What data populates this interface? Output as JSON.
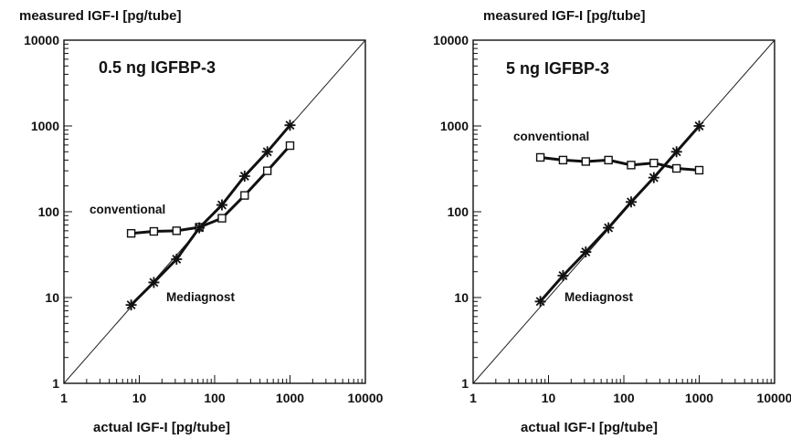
{
  "chart_data": [
    {
      "type": "line",
      "title": "0.5 ng IGFBP-3",
      "ylabel": "measured IGF-I [pg/tube]",
      "xlabel": "actual IGF-I [pg/tube]",
      "xscale": "log",
      "yscale": "log",
      "xlim": [
        1,
        10000
      ],
      "ylim": [
        1,
        10000
      ],
      "xticks": [
        "1",
        "10",
        "100",
        "1000",
        "10000"
      ],
      "yticks": [
        "1",
        "10",
        "100",
        "1000",
        "10000"
      ],
      "identity_line": true,
      "grid": false,
      "series": [
        {
          "name": "conventional",
          "marker": "square",
          "x": [
            7.8,
            15.6,
            31.25,
            62.5,
            125,
            250,
            500,
            1000
          ],
          "y": [
            56,
            59,
            60,
            66,
            84,
            155,
            300,
            590
          ]
        },
        {
          "name": "Mediagnost",
          "marker": "asterisk",
          "x": [
            7.8,
            15.6,
            31.25,
            62.5,
            125,
            250,
            500,
            1000
          ],
          "y": [
            8.2,
            15,
            28,
            65,
            120,
            260,
            500,
            1020
          ]
        }
      ]
    },
    {
      "type": "line",
      "title": "5 ng IGFBP-3",
      "ylabel": "measured IGF-I [pg/tube]",
      "xlabel": "actual IGF-I [pg/tube]",
      "xscale": "log",
      "yscale": "log",
      "xlim": [
        1,
        10000
      ],
      "ylim": [
        1,
        10000
      ],
      "xticks": [
        "1",
        "10",
        "100",
        "1000",
        "10000"
      ],
      "yticks": [
        "1",
        "10",
        "100",
        "1000",
        "10000"
      ],
      "identity_line": true,
      "grid": false,
      "series": [
        {
          "name": "conventional",
          "marker": "square",
          "x": [
            7.8,
            15.6,
            31.25,
            62.5,
            125,
            250,
            500,
            1000
          ],
          "y": [
            430,
            400,
            385,
            400,
            350,
            370,
            320,
            305
          ]
        },
        {
          "name": "Mediagnost",
          "marker": "asterisk",
          "x": [
            7.8,
            15.6,
            31.25,
            62.5,
            125,
            250,
            500,
            1000
          ],
          "y": [
            9,
            18,
            34,
            65,
            130,
            250,
            500,
            1000
          ]
        }
      ]
    }
  ]
}
